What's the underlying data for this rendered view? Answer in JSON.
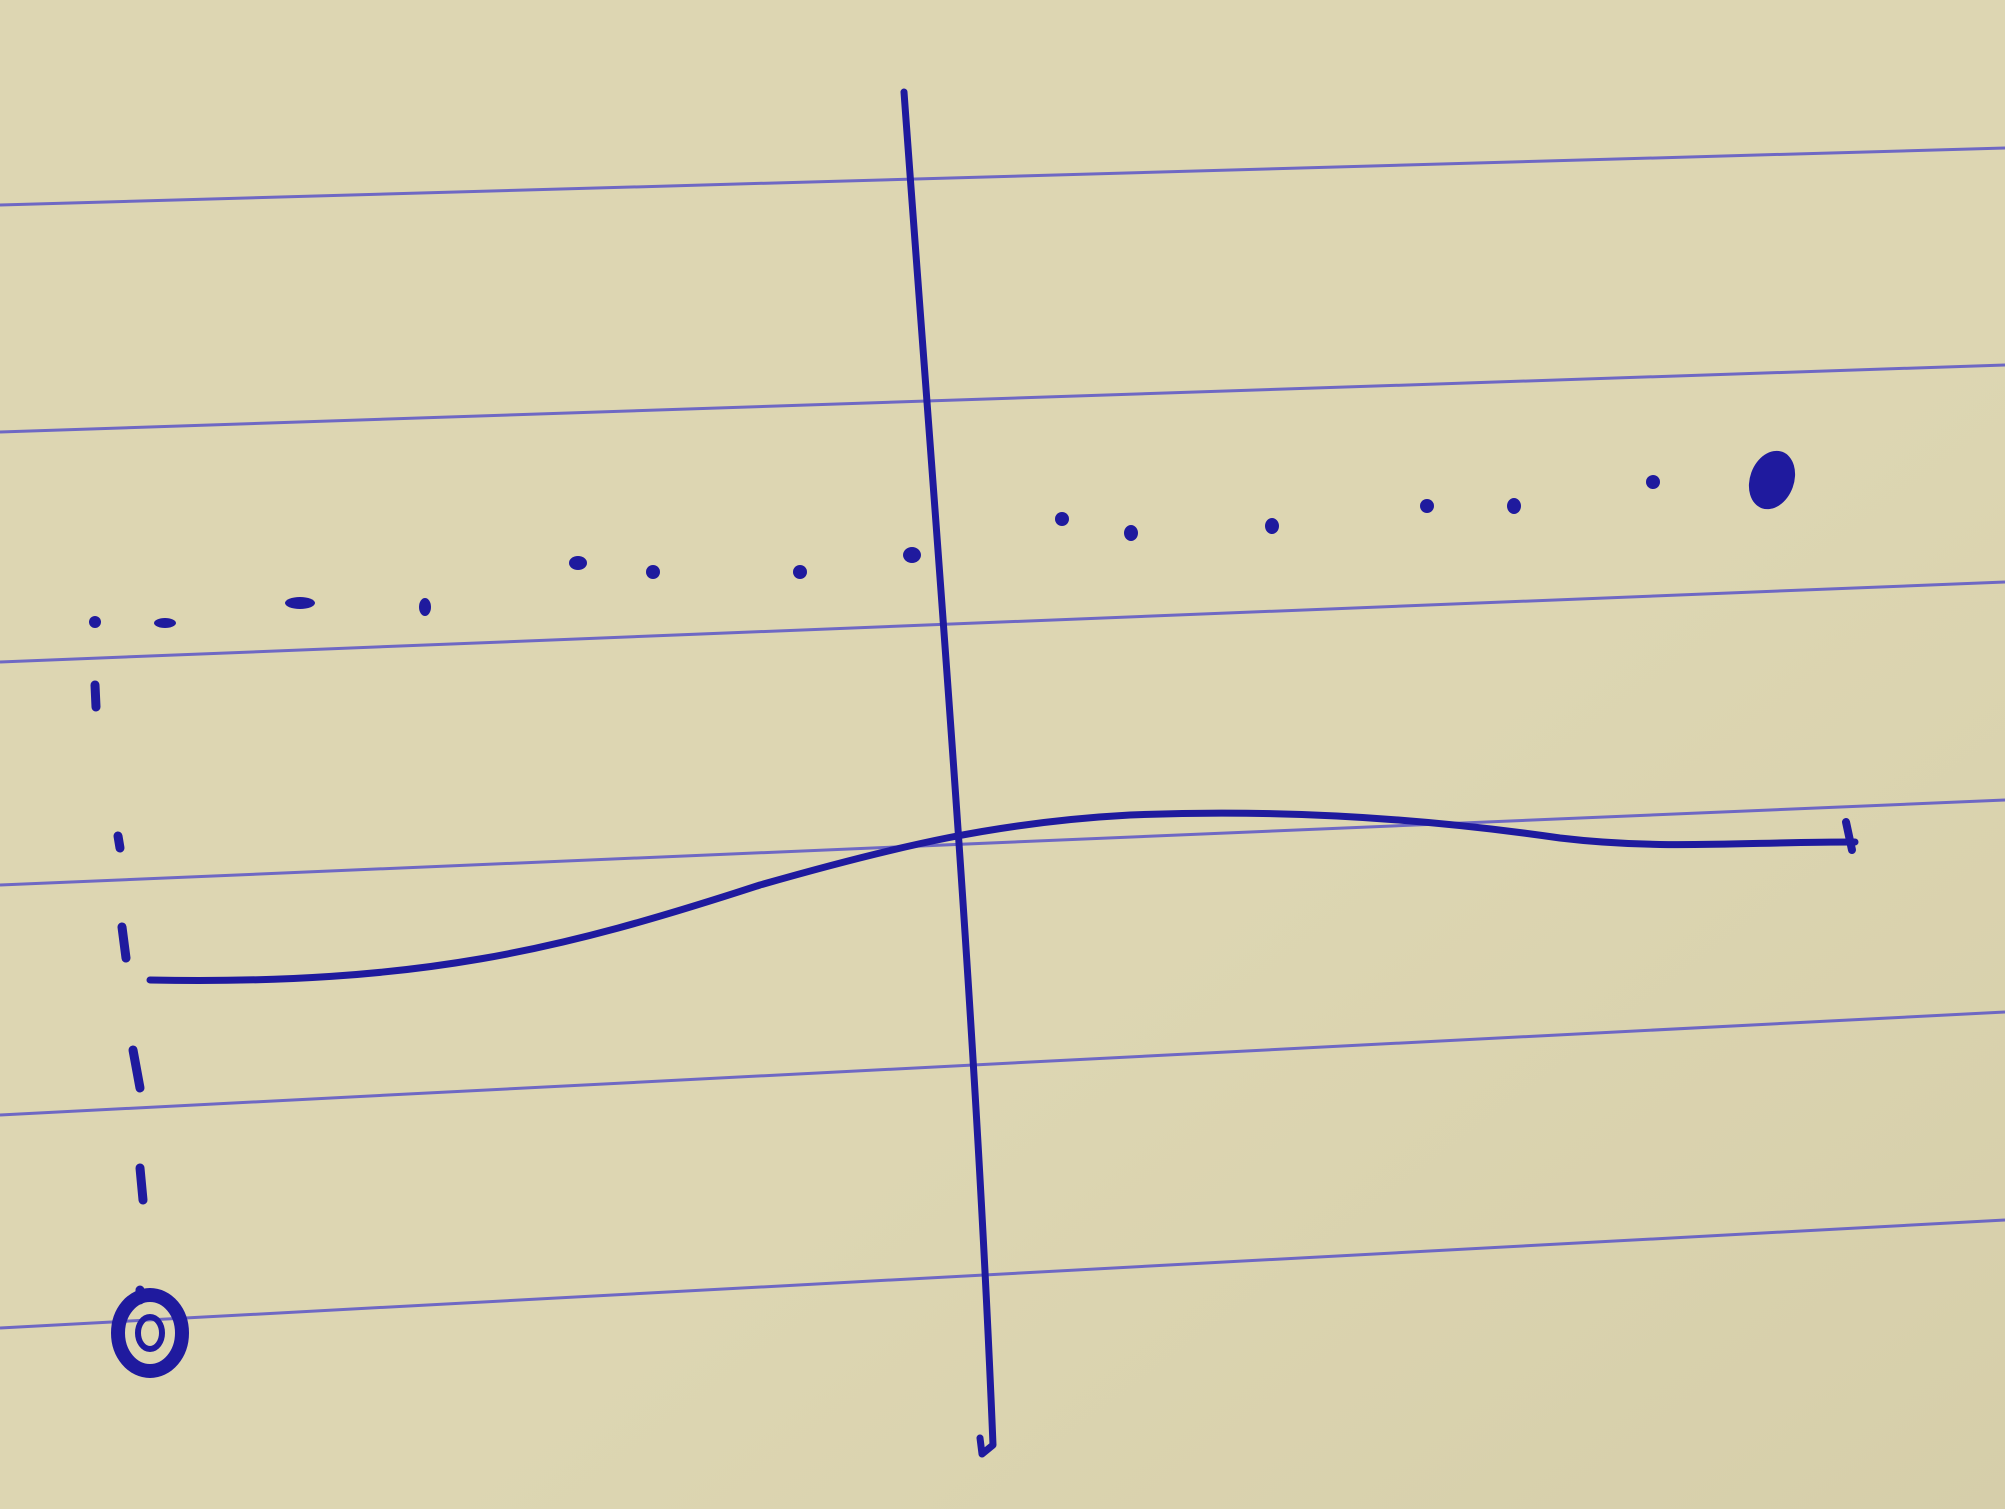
{
  "paper": {
    "color": "#ddd6b2",
    "shade_color": "#c9c09a",
    "rule_color": "#5b55c8"
  },
  "ink": {
    "color": "#1f1a9e"
  },
  "marks": {
    "axis": "vertical-line",
    "curve": "smooth-curve",
    "upper_dots": "dotted-line",
    "left_dashes": "dashed-line",
    "open_circle": "open-circle",
    "filled_dot": "filled-dot"
  }
}
